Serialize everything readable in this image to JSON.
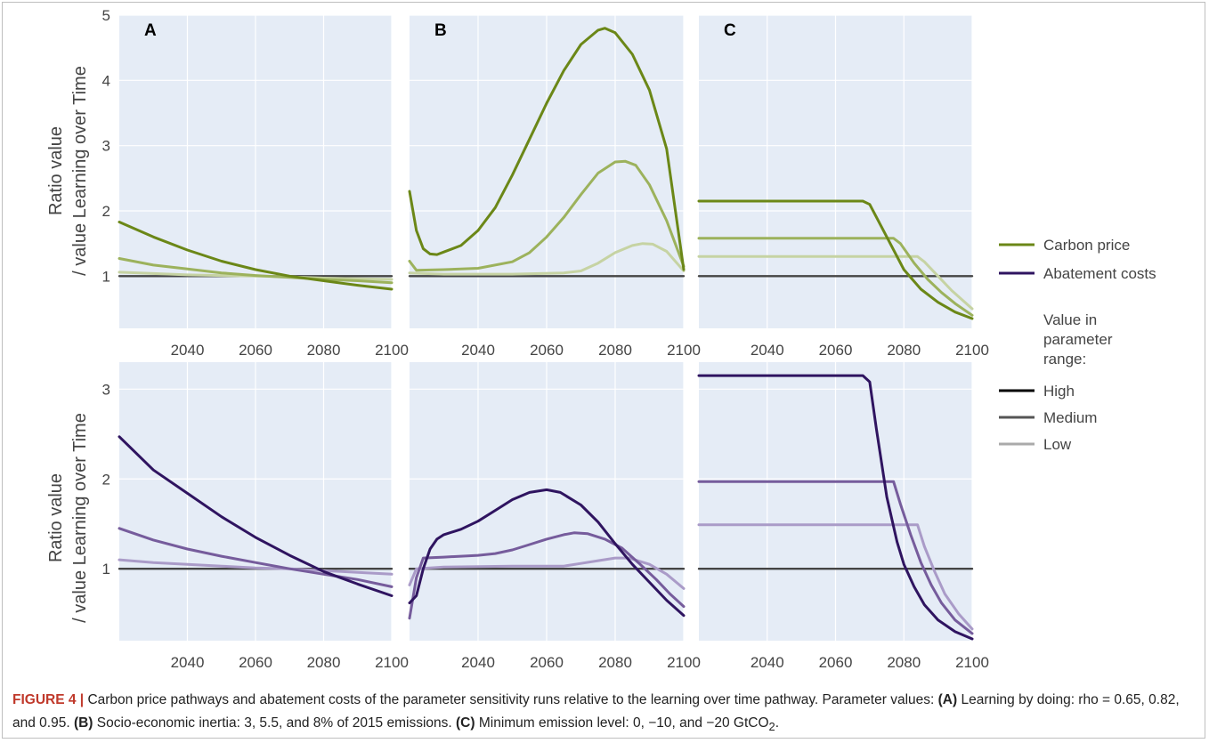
{
  "colors": {
    "panel_bg": "#e5ecf6",
    "grid": "#ffffff",
    "baseline": "#444444",
    "carbon": [
      "#6b8717",
      "#9cb25c",
      "#c6d3a3"
    ],
    "abatement": [
      "#2f1460",
      "#765c9c",
      "#aa9bc8"
    ],
    "legend_range": [
      "#000000",
      "#555555",
      "#aaaaaa"
    ]
  },
  "panel_letters": [
    "A",
    "B",
    "C"
  ],
  "ylabel_line1": "Ratio value",
  "ylabel_line2": "/ value Learning over Time",
  "xticks": [
    2040,
    2060,
    2080,
    2100
  ],
  "xtick_labels": [
    "2040",
    "2060",
    "2080",
    "2100"
  ],
  "legend": {
    "series": [
      {
        "label": "Carbon price",
        "color": "#6b8717"
      },
      {
        "label": "Abatement costs",
        "color": "#2f1460"
      }
    ],
    "range_title": [
      "Value in",
      "parameter",
      "range:"
    ],
    "range_items": [
      {
        "label": "High",
        "color": "#000000"
      },
      {
        "label": "Medium",
        "color": "#555555"
      },
      {
        "label": "Low",
        "color": "#aaaaaa"
      }
    ]
  },
  "caption": {
    "fig_id": "FIGURE 4 |",
    "text1": " Carbon price pathways and abatement costs of the parameter sensitivity runs relative to the learning over time pathway. Parameter values: ",
    "a_tag": "(A)",
    "text2": " Learning by doing: rho = 0.65, 0.82, and 0.95. ",
    "b_tag": "(B)",
    "text3": " Socio-economic inertia: 3, 5.5, and 8% of 2015 emissions. ",
    "c_tag": "(C)",
    "text4": " Minimum emission level: 0, −10, and −20 GtCO",
    "sub": "2",
    "text5": "."
  },
  "chart_data": [
    {
      "type": "line",
      "panel": "A",
      "row": "Carbon price",
      "xlim": [
        2020,
        2100
      ],
      "ylim": [
        0.2,
        5.0
      ],
      "yticks": [
        1,
        2,
        3,
        4,
        5
      ],
      "ytick_labels": [
        "1",
        "2",
        "3",
        "4",
        "5"
      ],
      "series": [
        {
          "points": [
            [
              2020,
              1.83
            ],
            [
              2030,
              1.6
            ],
            [
              2040,
              1.4
            ],
            [
              2050,
              1.23
            ],
            [
              2060,
              1.1
            ],
            [
              2070,
              1.0
            ],
            [
              2080,
              0.93
            ],
            [
              2090,
              0.86
            ],
            [
              2100,
              0.8
            ]
          ]
        },
        {
          "points": [
            [
              2020,
              1.27
            ],
            [
              2030,
              1.17
            ],
            [
              2040,
              1.11
            ],
            [
              2050,
              1.05
            ],
            [
              2060,
              1.01
            ],
            [
              2070,
              0.98
            ],
            [
              2080,
              0.95
            ],
            [
              2090,
              0.93
            ],
            [
              2100,
              0.9
            ]
          ]
        },
        {
          "points": [
            [
              2020,
              1.06
            ],
            [
              2030,
              1.04
            ],
            [
              2040,
              1.02
            ],
            [
              2050,
              1.01
            ],
            [
              2060,
              1.0
            ],
            [
              2070,
              0.99
            ],
            [
              2080,
              0.97
            ],
            [
              2090,
              0.96
            ],
            [
              2100,
              0.95
            ]
          ]
        },
        {
          "points": [
            [
              2020,
              1.0
            ],
            [
              2100,
              1.0
            ]
          ]
        }
      ]
    },
    {
      "type": "line",
      "panel": "B",
      "row": "Carbon price",
      "xlim": [
        2020,
        2100
      ],
      "ylim": [
        0.2,
        5.0
      ],
      "yticks": [
        1,
        2,
        3,
        4,
        5
      ],
      "ytick_labels": [],
      "series": [
        {
          "points": [
            [
              2020,
              2.3
            ],
            [
              2022,
              1.7
            ],
            [
              2024,
              1.42
            ],
            [
              2026,
              1.34
            ],
            [
              2028,
              1.33
            ],
            [
              2030,
              1.37
            ],
            [
              2035,
              1.47
            ],
            [
              2040,
              1.7
            ],
            [
              2045,
              2.05
            ],
            [
              2050,
              2.55
            ],
            [
              2055,
              3.1
            ],
            [
              2060,
              3.65
            ],
            [
              2065,
              4.15
            ],
            [
              2070,
              4.55
            ],
            [
              2075,
              4.77
            ],
            [
              2077,
              4.8
            ],
            [
              2080,
              4.73
            ],
            [
              2085,
              4.4
            ],
            [
              2090,
              3.85
            ],
            [
              2095,
              2.95
            ],
            [
              2100,
              1.1
            ]
          ]
        },
        {
          "points": [
            [
              2020,
              1.23
            ],
            [
              2022,
              1.09
            ],
            [
              2030,
              1.1
            ],
            [
              2040,
              1.12
            ],
            [
              2050,
              1.22
            ],
            [
              2055,
              1.36
            ],
            [
              2060,
              1.6
            ],
            [
              2065,
              1.9
            ],
            [
              2070,
              2.25
            ],
            [
              2075,
              2.58
            ],
            [
              2080,
              2.75
            ],
            [
              2083,
              2.76
            ],
            [
              2086,
              2.7
            ],
            [
              2090,
              2.4
            ],
            [
              2095,
              1.85
            ],
            [
              2100,
              1.15
            ]
          ]
        },
        {
          "points": [
            [
              2020,
              1.05
            ],
            [
              2030,
              1.03
            ],
            [
              2050,
              1.03
            ],
            [
              2065,
              1.05
            ],
            [
              2070,
              1.08
            ],
            [
              2075,
              1.2
            ],
            [
              2080,
              1.36
            ],
            [
              2085,
              1.47
            ],
            [
              2088,
              1.5
            ],
            [
              2091,
              1.49
            ],
            [
              2095,
              1.38
            ],
            [
              2100,
              1.08
            ]
          ]
        },
        {
          "points": [
            [
              2020,
              1.0
            ],
            [
              2100,
              1.0
            ]
          ]
        }
      ]
    },
    {
      "type": "line",
      "panel": "C",
      "row": "Carbon price",
      "xlim": [
        2020,
        2100
      ],
      "ylim": [
        0.2,
        5.0
      ],
      "yticks": [
        1,
        2,
        3,
        4,
        5
      ],
      "ytick_labels": [],
      "series": [
        {
          "points": [
            [
              2020,
              2.15
            ],
            [
              2068,
              2.15
            ],
            [
              2070,
              2.1
            ],
            [
              2075,
              1.6
            ],
            [
              2080,
              1.1
            ],
            [
              2085,
              0.8
            ],
            [
              2090,
              0.6
            ],
            [
              2095,
              0.45
            ],
            [
              2100,
              0.35
            ]
          ]
        },
        {
          "points": [
            [
              2020,
              1.58
            ],
            [
              2077,
              1.58
            ],
            [
              2079,
              1.5
            ],
            [
              2083,
              1.2
            ],
            [
              2087,
              0.95
            ],
            [
              2091,
              0.75
            ],
            [
              2095,
              0.58
            ],
            [
              2100,
              0.4
            ]
          ]
        },
        {
          "points": [
            [
              2020,
              1.3
            ],
            [
              2084,
              1.3
            ],
            [
              2086,
              1.22
            ],
            [
              2090,
              1.0
            ],
            [
              2094,
              0.78
            ],
            [
              2100,
              0.5
            ]
          ]
        },
        {
          "points": [
            [
              2020,
              1.0
            ],
            [
              2100,
              1.0
            ]
          ]
        }
      ]
    },
    {
      "type": "line",
      "panel": "A",
      "row": "Abatement costs",
      "xlim": [
        2020,
        2100
      ],
      "ylim": [
        0.2,
        3.3
      ],
      "yticks": [
        1,
        2,
        3
      ],
      "ytick_labels": [
        "1",
        "2",
        "3"
      ],
      "series": [
        {
          "points": [
            [
              2020,
              2.47
            ],
            [
              2030,
              2.1
            ],
            [
              2040,
              1.84
            ],
            [
              2050,
              1.58
            ],
            [
              2060,
              1.35
            ],
            [
              2070,
              1.15
            ],
            [
              2080,
              0.97
            ],
            [
              2090,
              0.83
            ],
            [
              2100,
              0.7
            ]
          ]
        },
        {
          "points": [
            [
              2020,
              1.45
            ],
            [
              2030,
              1.32
            ],
            [
              2040,
              1.22
            ],
            [
              2050,
              1.14
            ],
            [
              2060,
              1.07
            ],
            [
              2070,
              1.0
            ],
            [
              2080,
              0.94
            ],
            [
              2090,
              0.88
            ],
            [
              2100,
              0.8
            ]
          ]
        },
        {
          "points": [
            [
              2020,
              1.1
            ],
            [
              2030,
              1.07
            ],
            [
              2040,
              1.05
            ],
            [
              2050,
              1.03
            ],
            [
              2060,
              1.01
            ],
            [
              2070,
              1.0
            ],
            [
              2080,
              0.98
            ],
            [
              2090,
              0.96
            ],
            [
              2100,
              0.94
            ]
          ]
        },
        {
          "points": [
            [
              2020,
              1.0
            ],
            [
              2100,
              1.0
            ]
          ]
        }
      ]
    },
    {
      "type": "line",
      "panel": "B",
      "row": "Abatement costs",
      "xlim": [
        2020,
        2100
      ],
      "ylim": [
        0.2,
        3.3
      ],
      "yticks": [
        1,
        2,
        3
      ],
      "ytick_labels": [],
      "series": [
        {
          "points": [
            [
              2020,
              0.62
            ],
            [
              2022,
              0.7
            ],
            [
              2024,
              1.0
            ],
            [
              2026,
              1.22
            ],
            [
              2028,
              1.33
            ],
            [
              2030,
              1.38
            ],
            [
              2035,
              1.44
            ],
            [
              2040,
              1.53
            ],
            [
              2045,
              1.65
            ],
            [
              2050,
              1.77
            ],
            [
              2055,
              1.85
            ],
            [
              2060,
              1.88
            ],
            [
              2064,
              1.85
            ],
            [
              2070,
              1.71
            ],
            [
              2075,
              1.52
            ],
            [
              2080,
              1.28
            ],
            [
              2085,
              1.05
            ],
            [
              2090,
              0.85
            ],
            [
              2095,
              0.65
            ],
            [
              2100,
              0.48
            ]
          ]
        },
        {
          "points": [
            [
              2020,
              0.45
            ],
            [
              2022,
              0.9
            ],
            [
              2024,
              1.12
            ],
            [
              2030,
              1.13
            ],
            [
              2040,
              1.15
            ],
            [
              2045,
              1.17
            ],
            [
              2050,
              1.21
            ],
            [
              2055,
              1.27
            ],
            [
              2060,
              1.33
            ],
            [
              2065,
              1.38
            ],
            [
              2068,
              1.4
            ],
            [
              2072,
              1.39
            ],
            [
              2077,
              1.33
            ],
            [
              2082,
              1.23
            ],
            [
              2087,
              1.06
            ],
            [
              2092,
              0.88
            ],
            [
              2096,
              0.72
            ],
            [
              2100,
              0.58
            ]
          ]
        },
        {
          "points": [
            [
              2020,
              0.82
            ],
            [
              2022,
              1.0
            ],
            [
              2030,
              1.02
            ],
            [
              2050,
              1.03
            ],
            [
              2065,
              1.03
            ],
            [
              2070,
              1.06
            ],
            [
              2075,
              1.09
            ],
            [
              2080,
              1.12
            ],
            [
              2084,
              1.12
            ],
            [
              2090,
              1.05
            ],
            [
              2095,
              0.94
            ],
            [
              2100,
              0.78
            ]
          ]
        },
        {
          "points": [
            [
              2020,
              1.0
            ],
            [
              2100,
              1.0
            ]
          ]
        }
      ]
    },
    {
      "type": "line",
      "panel": "C",
      "row": "Abatement costs",
      "xlim": [
        2020,
        2100
      ],
      "ylim": [
        0.2,
        3.3
      ],
      "yticks": [
        1,
        2,
        3
      ],
      "ytick_labels": [],
      "series": [
        {
          "points": [
            [
              2020,
              3.15
            ],
            [
              2068,
              3.15
            ],
            [
              2070,
              3.08
            ],
            [
              2072,
              2.55
            ],
            [
              2075,
              1.8
            ],
            [
              2078,
              1.3
            ],
            [
              2080,
              1.05
            ],
            [
              2083,
              0.8
            ],
            [
              2086,
              0.6
            ],
            [
              2090,
              0.43
            ],
            [
              2095,
              0.3
            ],
            [
              2100,
              0.22
            ]
          ]
        },
        {
          "points": [
            [
              2020,
              1.97
            ],
            [
              2077,
              1.97
            ],
            [
              2079,
              1.72
            ],
            [
              2082,
              1.38
            ],
            [
              2085,
              1.07
            ],
            [
              2088,
              0.82
            ],
            [
              2091,
              0.62
            ],
            [
              2095,
              0.43
            ],
            [
              2100,
              0.28
            ]
          ]
        },
        {
          "points": [
            [
              2020,
              1.49
            ],
            [
              2084,
              1.49
            ],
            [
              2086,
              1.25
            ],
            [
              2089,
              0.97
            ],
            [
              2092,
              0.72
            ],
            [
              2096,
              0.5
            ],
            [
              2100,
              0.33
            ]
          ]
        },
        {
          "points": [
            [
              2020,
              1.0
            ],
            [
              2100,
              1.0
            ]
          ]
        }
      ]
    }
  ]
}
